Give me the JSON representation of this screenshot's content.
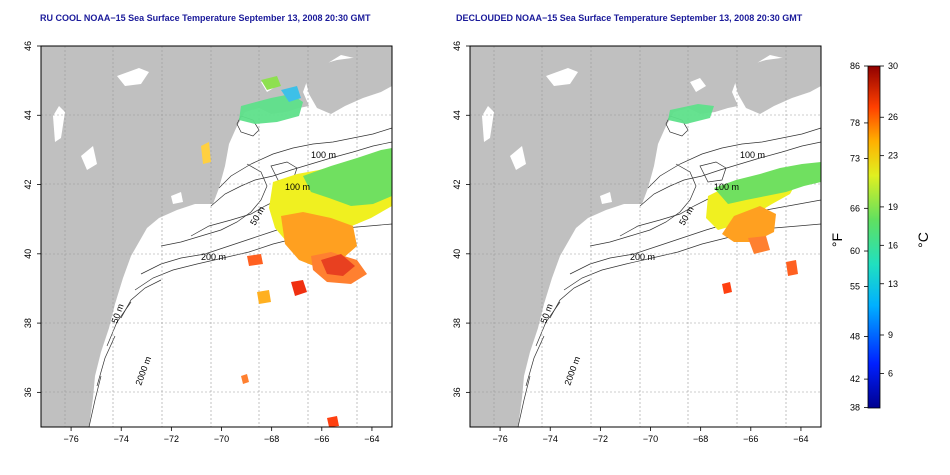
{
  "panels": [
    {
      "title": "RU COOL NOAA−15 Sea Surface Temperature September 13, 2008 20:30 GMT"
    },
    {
      "title": "DECLOUDED NOAA−15 Sea Surface Temperature September 13, 2008 20:30 GMT"
    }
  ],
  "map": {
    "lon_ticks": [
      "−76",
      "−74",
      "−72",
      "−70",
      "−68",
      "−66",
      "−64"
    ],
    "lat_ticks": [
      "46",
      "44",
      "42",
      "40",
      "38",
      "36"
    ],
    "lon_range": [
      -77.2,
      -63.2
    ],
    "lat_range": [
      35.0,
      46.0
    ],
    "contour_labels": [
      "100 m",
      "100 m",
      "50 m",
      "200 m",
      "50 m",
      "2000 m"
    ],
    "land_color": "#c0c0c0",
    "grid": true
  },
  "colorbar": {
    "f_ticks": [
      "86",
      "78",
      "73",
      "66",
      "60",
      "55",
      "48",
      "42",
      "38"
    ],
    "c_ticks": [
      "30",
      "26",
      "23",
      "19",
      "16",
      "13",
      "9",
      "6"
    ],
    "f_label": "°F",
    "c_label": "°C",
    "range_c": [
      3.3,
      30
    ]
  }
}
